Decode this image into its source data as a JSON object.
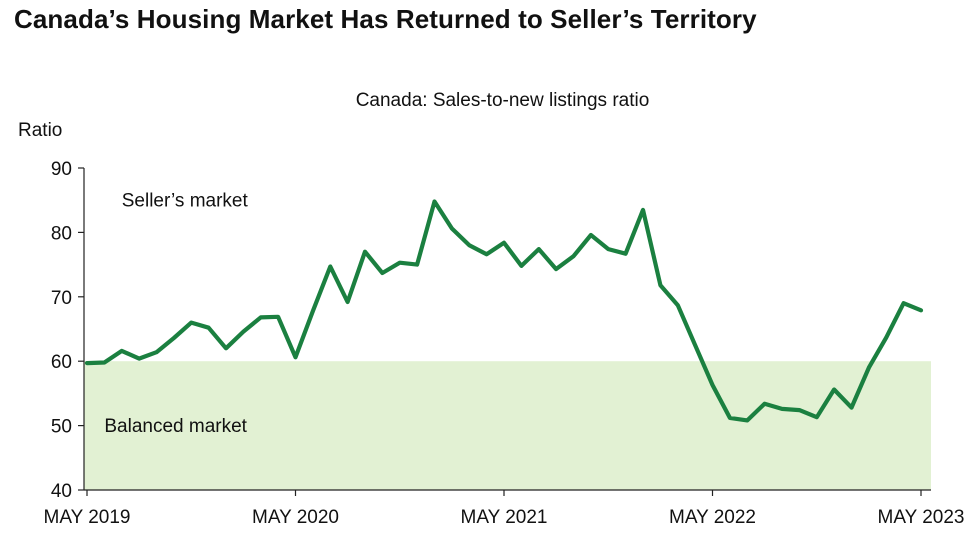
{
  "chart_data": {
    "type": "line",
    "title": "Canada’s Housing Market Has Returned to Seller’s Territory",
    "subtitle": "Canada: Sales-to-new listings ratio",
    "ylabel": "Ratio",
    "ylim": [
      40,
      90
    ],
    "yticks": [
      40,
      50,
      60,
      70,
      80,
      90
    ],
    "xlim": [
      "2019-05",
      "2023-05"
    ],
    "xtick_labels": [
      "MAY 2019",
      "MAY 2020",
      "MAY 2021",
      "MAY 2022",
      "MAY 2023"
    ],
    "xtick_dates": [
      "2019-05",
      "2020-05",
      "2021-05",
      "2022-05",
      "2023-05"
    ],
    "shaded_region": {
      "from": 40,
      "to": 60,
      "color": "#e2f1d3"
    },
    "annotations": [
      {
        "text": "Seller’s market",
        "x": "2019-07",
        "y": 84
      },
      {
        "text": "Balanced market",
        "x": "2019-06",
        "y": 49
      }
    ],
    "series": [
      {
        "color": "#1b8040",
        "x": [
          "2019-05",
          "2019-06",
          "2019-07",
          "2019-08",
          "2019-09",
          "2019-10",
          "2019-11",
          "2019-12",
          "2020-01",
          "2020-02",
          "2020-03",
          "2020-04",
          "2020-05",
          "2020-06",
          "2020-07",
          "2020-08",
          "2020-09",
          "2020-10",
          "2020-11",
          "2020-12",
          "2021-01",
          "2021-02",
          "2021-03",
          "2021-04",
          "2021-05",
          "2021-06",
          "2021-07",
          "2021-08",
          "2021-09",
          "2021-10",
          "2021-11",
          "2021-12",
          "2022-01",
          "2022-02",
          "2022-03",
          "2022-04",
          "2022-05",
          "2022-06",
          "2022-07",
          "2022-08",
          "2022-09",
          "2022-10",
          "2022-11",
          "2022-12",
          "2023-01",
          "2023-02",
          "2023-03",
          "2023-04",
          "2023-05"
        ],
        "values": [
          59.7,
          59.8,
          61.6,
          60.4,
          61.4,
          63.6,
          66.0,
          65.2,
          62.0,
          64.6,
          66.8,
          66.9,
          60.6,
          67.8,
          74.7,
          69.2,
          77.0,
          73.7,
          75.3,
          75.0,
          84.8,
          80.6,
          78.0,
          76.6,
          78.4,
          74.8,
          77.4,
          74.3,
          76.3,
          79.6,
          77.4,
          76.7,
          83.5,
          71.8,
          68.7,
          62.5,
          56.3,
          51.2,
          50.8,
          53.4,
          52.6,
          52.4,
          51.3,
          55.6,
          52.8,
          59.0,
          63.7,
          69.0,
          67.9
        ]
      }
    ]
  }
}
